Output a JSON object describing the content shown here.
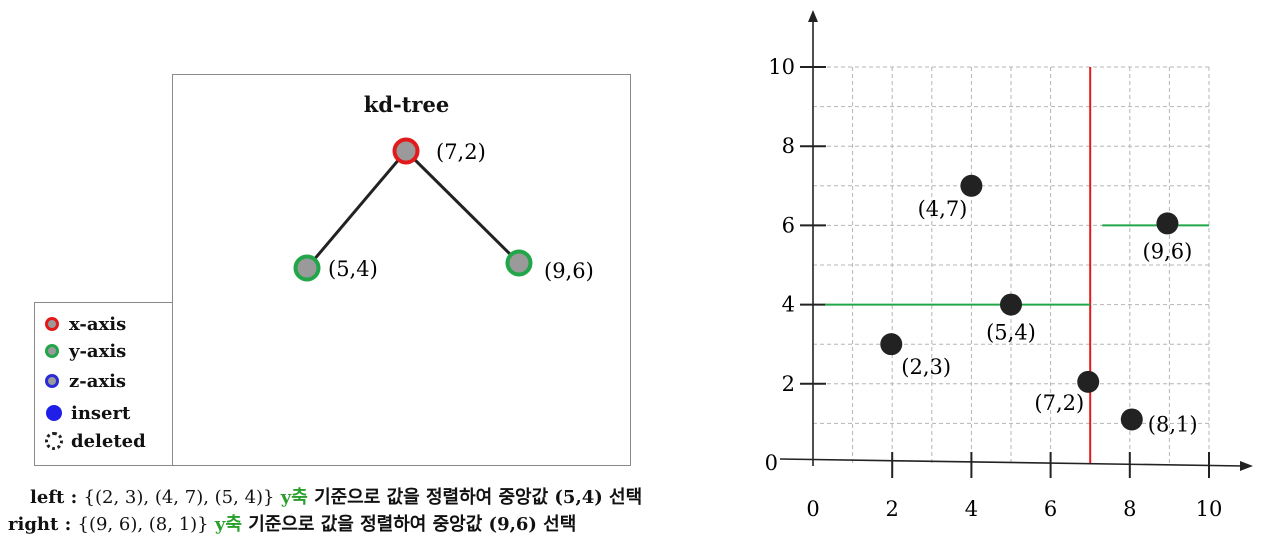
{
  "tree": {
    "title": "kd-tree",
    "nodes": [
      {
        "id": "root",
        "label": "(7,2)",
        "axis": "x-axis"
      },
      {
        "id": "left",
        "label": "(5,4)",
        "axis": "y-axis"
      },
      {
        "id": "right",
        "label": "(9,6)",
        "axis": "y-axis"
      }
    ]
  },
  "legend": [
    {
      "label": "x-axis",
      "kind": "ring",
      "color": "#e31a1c"
    },
    {
      "label": "y-axis",
      "kind": "ring",
      "color": "#22a64a"
    },
    {
      "label": "z-axis",
      "kind": "ring",
      "color": "#2b2bd9"
    },
    {
      "label": "insert",
      "kind": "dot",
      "color": "#1f1fe8"
    },
    {
      "label": "deleted",
      "kind": "dotted",
      "color": "#222222"
    }
  ],
  "description": {
    "left": {
      "prefix": "left : ",
      "set": "{(2, 3), (4, 7), (5, 4)}",
      "axis": " y축",
      "rest": " 기준으로 값을 정렬하여 중앙값 (5,4) 선택"
    },
    "right": {
      "prefix": "right : ",
      "set": "{(9, 6), (8, 1)}",
      "axis": " y축",
      "rest": " 기준으로 값을 정렬하여 중앙값 (9,6) 선택"
    }
  },
  "chart_data": {
    "type": "scatter",
    "xlim": [
      0,
      10
    ],
    "ylim": [
      0,
      10
    ],
    "x_ticks": [
      "0",
      "2",
      "4",
      "6",
      "8",
      "10"
    ],
    "y_ticks": [
      "0",
      "2",
      "4",
      "6",
      "8",
      "10"
    ],
    "grid": true,
    "points": [
      {
        "x": 2,
        "y": 3,
        "label": "(2,3)"
      },
      {
        "x": 4,
        "y": 7,
        "label": "(4,7)"
      },
      {
        "x": 5,
        "y": 4,
        "label": "(5,4)"
      },
      {
        "x": 7,
        "y": 2,
        "label": "(7,2)"
      },
      {
        "x": 8,
        "y": 1,
        "label": "(8,1)"
      },
      {
        "x": 9,
        "y": 6,
        "label": "(9,6)"
      }
    ],
    "splits": [
      {
        "axis": "x",
        "value": 7,
        "from": 0,
        "to": 10,
        "color": "#e31a1c"
      },
      {
        "axis": "y",
        "value": 4,
        "from": 0,
        "to": 7,
        "color": "#22a64a"
      },
      {
        "axis": "y",
        "value": 6,
        "from": 7,
        "to": 10,
        "color": "#22a64a"
      }
    ]
  }
}
